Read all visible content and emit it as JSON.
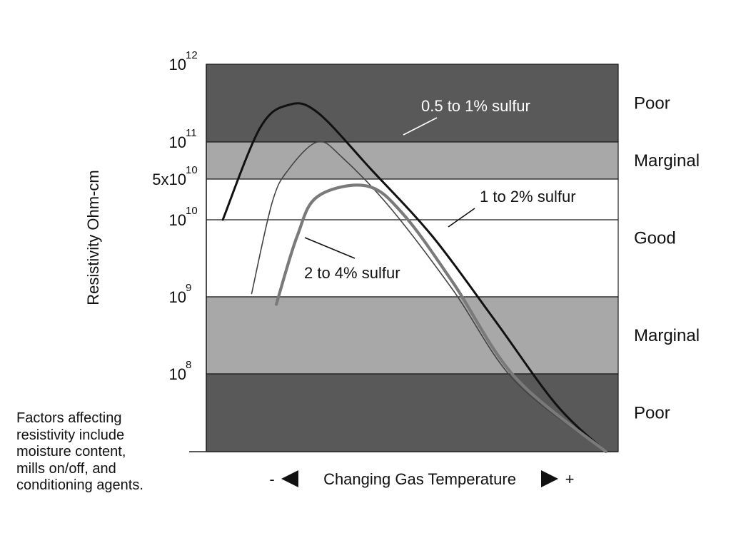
{
  "chart_data": {
    "type": "line",
    "ylabel": "Resistivity Ohm-cm",
    "xlabel": "Changing Gas Temperature",
    "xlabel_minus": "-",
    "xlabel_plus": "+",
    "y_scale": "log",
    "ylim": [
      10000000,
      1000000000000
    ],
    "y_ticks": [
      {
        "value": 1000000000000,
        "base": "10",
        "exp": "12"
      },
      {
        "value": 100000000000,
        "base": "10",
        "exp": "11"
      },
      {
        "value": 50000000000,
        "base": "5x10",
        "exp": "10"
      },
      {
        "value": 10000000000,
        "base": "10",
        "exp": "10"
      },
      {
        "value": 1000000000,
        "base": "10",
        "exp": "9"
      },
      {
        "value": 100000000,
        "base": "10",
        "exp": "8"
      }
    ],
    "zones": [
      {
        "label": "Poor",
        "from": 100000000000,
        "to": 1000000000000,
        "color": "#595959"
      },
      {
        "label": "Marginal",
        "from": 50000000000,
        "to": 100000000000,
        "color": "#a8a8a8"
      },
      {
        "label": "Good",
        "from": 1000000000,
        "to": 50000000000,
        "color": "#ffffff"
      },
      {
        "label": "Marginal",
        "from": 100000000,
        "to": 1000000000,
        "color": "#a8a8a8"
      },
      {
        "label": "Poor",
        "from": 10000000,
        "to": 100000000,
        "color": "#595959"
      }
    ],
    "series": [
      {
        "name": "0.5 to 1% sulfur",
        "color": "#111111",
        "style": "thick",
        "points": [
          [
            0.04,
            10000000000
          ],
          [
            0.13,
            150000000000
          ],
          [
            0.2,
            300000000000
          ],
          [
            0.27,
            240000000000
          ],
          [
            0.4,
            60000000000
          ],
          [
            0.55,
            6000000000
          ],
          [
            0.7,
            500000000
          ],
          [
            0.85,
            40000000
          ],
          [
            0.97,
            10000000
          ]
        ]
      },
      {
        "name": "1 to 2% sulfur",
        "color": "#444444",
        "style": "thin",
        "points": [
          [
            0.11,
            1100000000
          ],
          [
            0.16,
            20000000000
          ],
          [
            0.2,
            60000000000
          ],
          [
            0.27,
            100000000000
          ],
          [
            0.33,
            75000000000
          ],
          [
            0.45,
            15000000000
          ],
          [
            0.6,
            1200000000
          ],
          [
            0.75,
            80000000
          ],
          [
            0.97,
            10000000
          ]
        ]
      },
      {
        "name": "2 to 4% sulfur",
        "color": "#7a7a7a",
        "style": "thick",
        "points": [
          [
            0.17,
            800000000
          ],
          [
            0.22,
            6000000000
          ],
          [
            0.27,
            25000000000
          ],
          [
            0.39,
            38000000000
          ],
          [
            0.48,
            12000000000
          ],
          [
            0.6,
            1500000000
          ],
          [
            0.75,
            90000000
          ],
          [
            0.97,
            10000000
          ]
        ]
      }
    ]
  },
  "note_lines": [
    "Factors affecting",
    "resistivity include",
    "moisture content,",
    "mills on/off, and",
    "conditioning agents."
  ]
}
